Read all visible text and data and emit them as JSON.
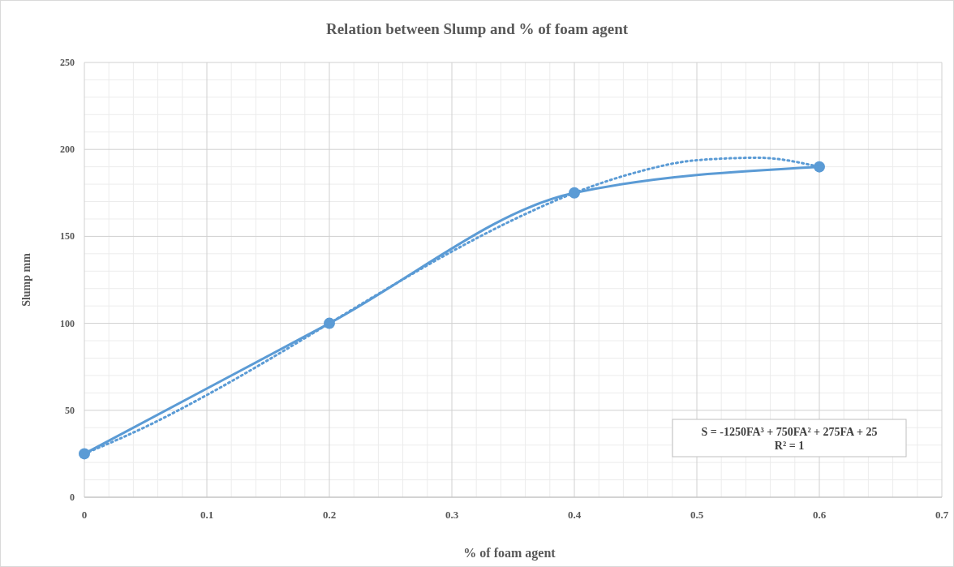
{
  "chart_data": {
    "type": "line",
    "title": "Relation between Slump and % of foam agent",
    "xlabel": "% of foam agent",
    "ylabel": "Slump mm",
    "x": [
      0,
      0.2,
      0.4,
      0.6
    ],
    "series": [
      {
        "color": "#5b9bd5",
        "values": [
          25,
          100,
          175,
          190
        ],
        "marker": "circle",
        "line_style": "solid"
      },
      {
        "color": "#5b9bd5",
        "x": [
          0,
          0.05,
          0.1,
          0.15,
          0.2,
          0.25,
          0.3,
          0.35,
          0.4,
          0.45,
          0.5,
          0.55,
          0.6
        ],
        "values": [
          25,
          40.5,
          58.8,
          78.9,
          100,
          121.1,
          141.3,
          159.5,
          175,
          186.7,
          193.8,
          195.2,
          190
        ],
        "marker": "none",
        "line_style": "dotted"
      }
    ],
    "xlim": [
      0,
      0.7
    ],
    "xticks": [
      0,
      0.1,
      0.2,
      0.3,
      0.4,
      0.5,
      0.6,
      0.7
    ],
    "ylim": [
      0,
      250
    ],
    "yticks": [
      0,
      50,
      100,
      150,
      200,
      250
    ],
    "grid": true,
    "annotations": [
      "S = -1250FA³ + 750FA² + 275FA + 25\nR² = 1"
    ]
  }
}
